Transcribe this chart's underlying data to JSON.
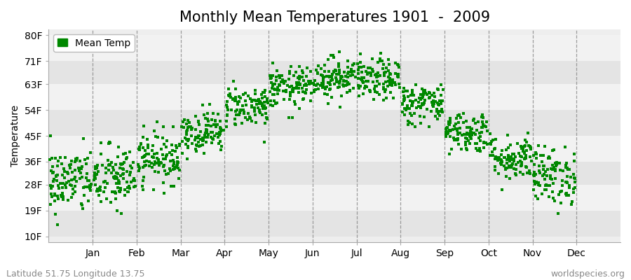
{
  "title": "Monthly Mean Temperatures 1901  -  2009",
  "ylabel": "Temperature",
  "xlabel_months": [
    "Jan",
    "Feb",
    "Mar",
    "Apr",
    "May",
    "Jun",
    "Jul",
    "Aug",
    "Sep",
    "Oct",
    "Nov",
    "Dec"
  ],
  "yticks": [
    10,
    19,
    28,
    36,
    45,
    54,
    63,
    71,
    80
  ],
  "ytick_labels": [
    "10F",
    "19F",
    "28F",
    "36F",
    "45F",
    "54F",
    "63F",
    "71F",
    "80F"
  ],
  "ylim": [
    8,
    82
  ],
  "dot_color": "#008800",
  "dot_size": 6,
  "background_color": "#ffffff",
  "plot_bg_color": "#eeeeee",
  "stripe_color_odd": "#e4e4e4",
  "stripe_color_even": "#f2f2f2",
  "legend_label": "Mean Temp",
  "footer_left": "Latitude 51.75 Longitude 13.75",
  "footer_right": "worldspecies.org",
  "title_fontsize": 15,
  "axis_fontsize": 10,
  "footer_fontsize": 9,
  "num_years": 109,
  "monthly_means_C": [
    -1.5,
    -1.0,
    3.0,
    8.0,
    13.0,
    16.5,
    18.5,
    18.0,
    13.5,
    8.0,
    3.0,
    -0.5
  ],
  "monthly_stds_C": [
    3.2,
    3.2,
    2.5,
    2.0,
    2.0,
    2.0,
    2.0,
    2.0,
    2.0,
    2.0,
    2.2,
    2.8
  ],
  "seed": 42,
  "xlim": [
    0,
    13
  ]
}
